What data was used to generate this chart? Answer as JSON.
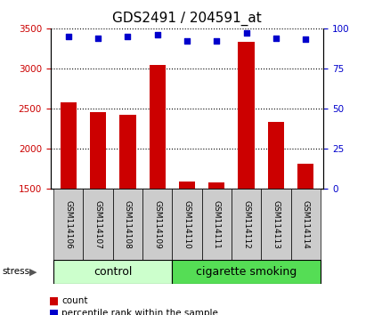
{
  "title": "GDS2491 / 204591_at",
  "samples": [
    "GSM114106",
    "GSM114107",
    "GSM114108",
    "GSM114109",
    "GSM114110",
    "GSM114111",
    "GSM114112",
    "GSM114113",
    "GSM114114"
  ],
  "counts": [
    2580,
    2460,
    2420,
    3040,
    1590,
    1580,
    3330,
    2340,
    1820
  ],
  "percentiles": [
    95,
    94,
    95,
    96,
    92,
    92,
    97,
    94,
    93
  ],
  "ylim_left": [
    1500,
    3500
  ],
  "ylim_right": [
    0,
    100
  ],
  "yticks_left": [
    1500,
    2000,
    2500,
    3000,
    3500
  ],
  "yticks_right": [
    0,
    25,
    50,
    75,
    100
  ],
  "bar_color": "#cc0000",
  "dot_color": "#0000cc",
  "n_control": 4,
  "n_smoking": 5,
  "control_label": "control",
  "smoking_label": "cigarette smoking",
  "stress_label": "stress",
  "group_bar_light_green": "#ccffcc",
  "group_bar_green": "#55dd55",
  "sample_box_color": "#cccccc",
  "legend_count_label": "count",
  "legend_pct_label": "percentile rank within the sample",
  "title_fontsize": 11,
  "tick_fontsize": 7.5,
  "sample_fontsize": 6.5,
  "label_fontsize": 9
}
